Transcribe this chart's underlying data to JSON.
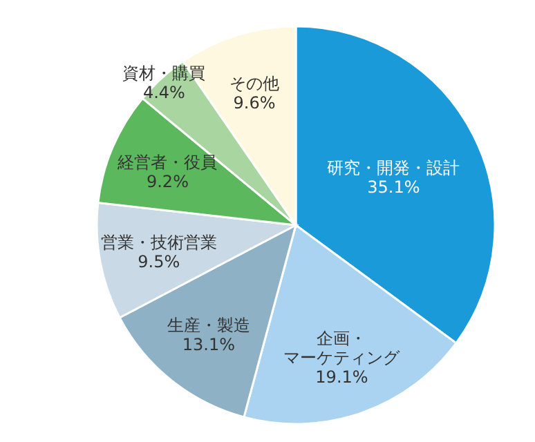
{
  "chart_data": {
    "type": "pie",
    "categories": [
      "研究・開発・設計",
      "企画・マーケティング",
      "生産・製造",
      "営業・技術営業",
      "経営者・役員",
      "資材・購買",
      "その他"
    ],
    "values": [
      35.1,
      19.1,
      13.1,
      9.5,
      9.2,
      4.4,
      9.6
    ],
    "colors": [
      "#1a9ad9",
      "#a9d3f0",
      "#8fb1c6",
      "#c9d9e5",
      "#5cb85c",
      "#a8d5a0",
      "#fff8e0"
    ],
    "value_labels": [
      "35.1%",
      "19.1%",
      "13.1%",
      "9.5%",
      "9.2%",
      "4.4%",
      "9.6%"
    ]
  }
}
